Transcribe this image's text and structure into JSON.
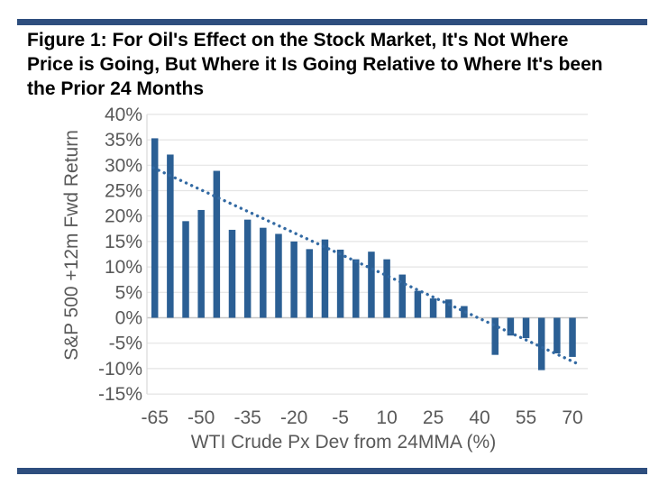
{
  "header": {
    "title_lines": [
      "Figure 1: For Oil's Effect on the Stock Market, It's Not Where",
      "Price is Going, But Where it Is Going Relative to Where It's been",
      "the Prior 24 Months"
    ],
    "rule_color": "#2E4E7E"
  },
  "chart_data": {
    "type": "bar",
    "title": "Figure 1: For Oil's Effect on the Stock Market, It's Not Where Price is Going, But Where it Is Going Relative to Where It's been the Prior 24 Months",
    "xlabel": "WTI Crude Px Dev from 24MMA (%)",
    "ylabel": "S&P 500 +12m Fwd Return",
    "x": [
      -65,
      -60,
      -55,
      -50,
      -45,
      -40,
      -35,
      -30,
      -25,
      -20,
      -15,
      -10,
      -5,
      0,
      5,
      10,
      15,
      20,
      25,
      30,
      35,
      40,
      45,
      50,
      55,
      60,
      65,
      70
    ],
    "values": [
      35.3,
      32.1,
      19.0,
      21.2,
      28.9,
      17.3,
      19.3,
      17.7,
      16.5,
      15.0,
      13.5,
      15.4,
      13.4,
      11.5,
      13.0,
      11.5,
      8.5,
      5.3,
      3.8,
      3.6,
      2.3,
      0.0,
      -7.3,
      -3.5,
      -4.0,
      -10.3,
      -7.0,
      -7.7
    ],
    "x_tick_labels": [
      -65,
      -50,
      -35,
      -20,
      -5,
      10,
      25,
      40,
      55,
      70
    ],
    "y_ticks": [
      40,
      35,
      30,
      25,
      20,
      15,
      10,
      5,
      0,
      -5,
      -10,
      -15
    ],
    "ylim": [
      -15,
      40
    ],
    "xlim": [
      -67.5,
      72.5
    ],
    "grid": true,
    "legend": "none",
    "bar_color": "#2B5F94",
    "trendline": {
      "style": "dotted",
      "color": "#336AA3",
      "x1": -65.5,
      "y1": 29.5,
      "x2": 71.5,
      "y2": -9.0
    },
    "tick_label_color": "#595959",
    "gridline_color": "#E4E4E4",
    "zero_line_color": "#C6C6C6",
    "axis_line_color": "#D9D9D9"
  }
}
